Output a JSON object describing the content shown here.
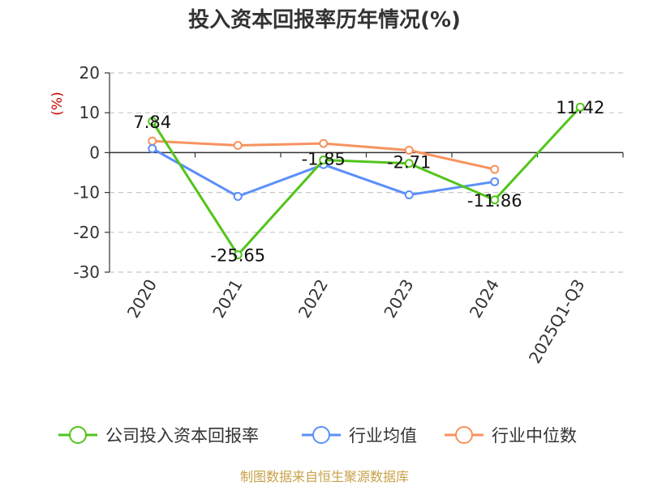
{
  "chart_data": {
    "type": "line",
    "title": "投入资本回报率历年情况(%)",
    "ylabel": "(%)",
    "xlabel": "",
    "categories": [
      "2020",
      "2021",
      "2022",
      "2023",
      "2024",
      "2025Q1-Q3"
    ],
    "yticks": [
      20,
      10,
      0,
      -10,
      -20,
      -30
    ],
    "ylim": [
      -30,
      20
    ],
    "grid": true,
    "legend_position": "bottom",
    "series": [
      {
        "name": "公司投入资本回报率",
        "color": "#52c41a",
        "values": [
          7.84,
          -25.65,
          -1.85,
          -2.71,
          -11.86,
          11.42
        ],
        "labels": [
          "7.84",
          "-25.65",
          "-1.85",
          "-2.71",
          "-11.86",
          "11.42"
        ]
      },
      {
        "name": "行业均值",
        "color": "#5b8ff9",
        "values": [
          1.0,
          -11.0,
          -3.0,
          -10.6,
          -7.3,
          null
        ]
      },
      {
        "name": "行业中位数",
        "color": "#f7925f",
        "values": [
          2.9,
          1.8,
          2.3,
          0.6,
          -4.2,
          null
        ]
      }
    ]
  },
  "footer": {
    "source": "制图数据来自恒生聚源数据库"
  }
}
